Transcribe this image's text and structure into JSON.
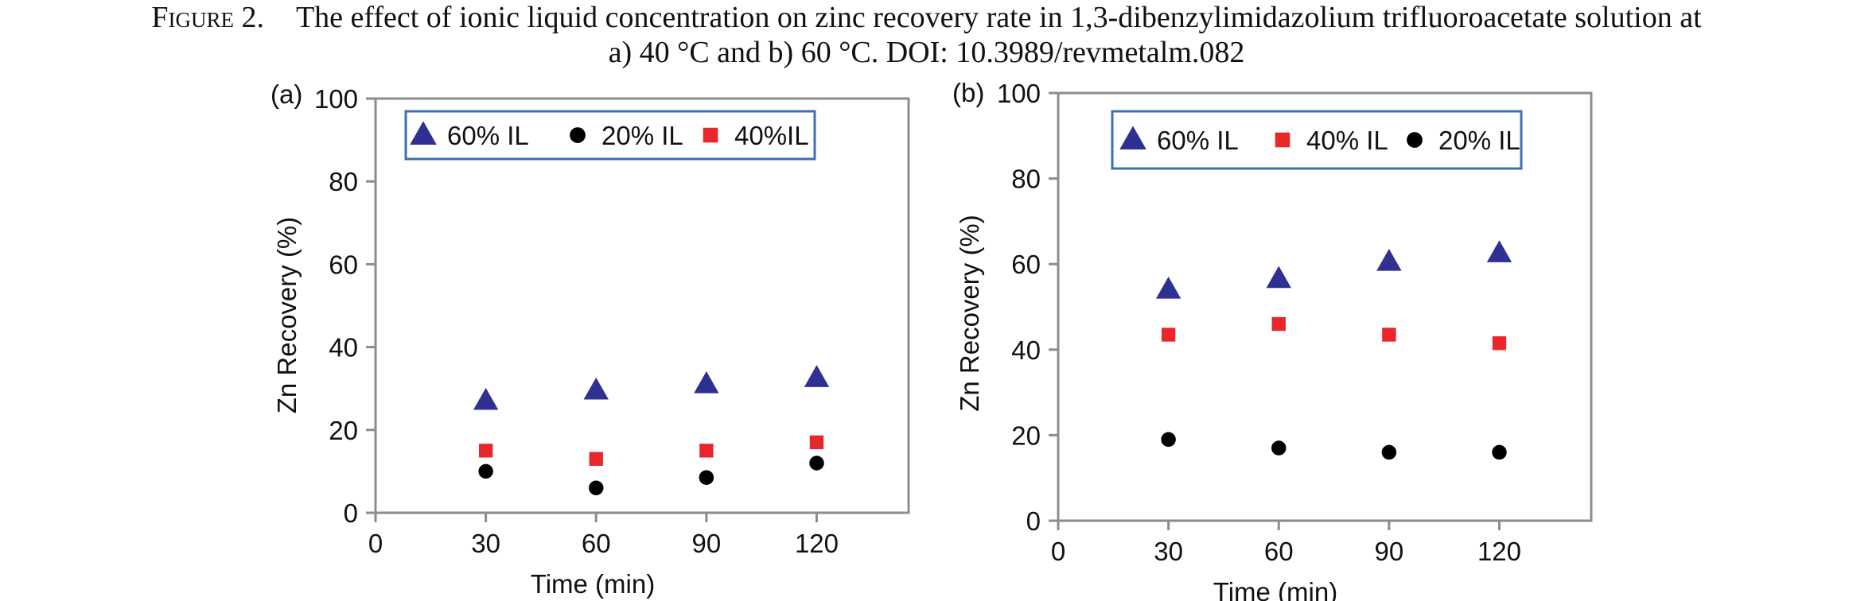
{
  "caption": {
    "lead": "Figure 2.",
    "line1": "The effect of ionic liquid concentration on zinc recovery rate in 1,3-dibenzylimidazolium trifluoroacetate solution at",
    "line2": "a) 40 °C and b) 60 °C. DOI: 10.3989/revmetalm.082"
  },
  "chart_data": [
    {
      "type": "scatter",
      "panel_label": "(a)",
      "xlabel": "Time (min)",
      "ylabel": "Zn Recovery  (%)",
      "xlim": [
        0,
        145
      ],
      "ylim": [
        0,
        100
      ],
      "xticks": [
        0,
        30,
        60,
        90,
        120
      ],
      "yticks": [
        0,
        20,
        40,
        60,
        80,
        100
      ],
      "grid": false,
      "legend_position": "top",
      "series": [
        {
          "name": "60% IL",
          "marker": "triangle",
          "color": "#2e3192",
          "x": [
            30,
            60,
            90,
            120
          ],
          "y": [
            27,
            29.5,
            31,
            32.5
          ]
        },
        {
          "name": "20% IL",
          "marker": "circle",
          "color": "#000000",
          "x": [
            30,
            60,
            90,
            120
          ],
          "y": [
            10,
            6,
            8.5,
            12
          ]
        },
        {
          "name": "40%IL",
          "marker": "square",
          "color": "#e8262b",
          "x": [
            30,
            60,
            90,
            120
          ],
          "y": [
            15,
            13,
            15,
            17
          ]
        }
      ]
    },
    {
      "type": "scatter",
      "panel_label": "(b)",
      "xlabel": "Time (min)",
      "ylabel": "Zn  Recovery  (%)",
      "xlim": [
        0,
        145
      ],
      "ylim": [
        0,
        100
      ],
      "xticks": [
        0,
        30,
        60,
        90,
        120
      ],
      "yticks": [
        0,
        20,
        40,
        60,
        80,
        100
      ],
      "grid": false,
      "legend_position": "top",
      "series": [
        {
          "name": "60% IL",
          "marker": "triangle",
          "color": "#2e3192",
          "x": [
            30,
            60,
            90,
            120
          ],
          "y": [
            54,
            56.5,
            60.5,
            62.5
          ]
        },
        {
          "name": "40% IL",
          "marker": "square",
          "color": "#e8262b",
          "x": [
            30,
            60,
            90,
            120
          ],
          "y": [
            43.5,
            46,
            43.5,
            41.5
          ]
        },
        {
          "name": "20% IL",
          "marker": "circle",
          "color": "#000000",
          "x": [
            30,
            60,
            90,
            120
          ],
          "y": [
            19,
            17,
            16,
            16
          ]
        }
      ]
    }
  ]
}
